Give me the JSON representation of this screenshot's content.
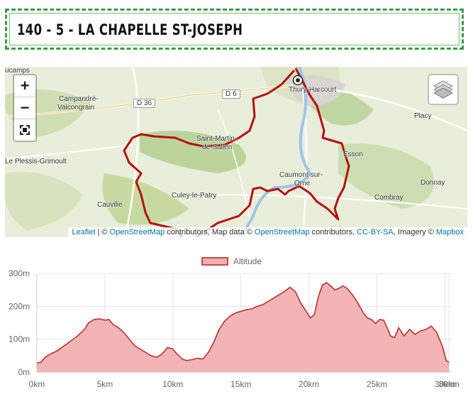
{
  "title": "140 - 5 - LA CHAPELLE ST-JOSEPH",
  "map": {
    "zoom_in_label": "+",
    "zoom_out_label": "−",
    "fullscreen_label": "⛶",
    "attribution": {
      "leaflet": "Leaflet",
      "sep1": " | © ",
      "osm1": "OpenStreetMap",
      "mid1": " contributors, Map data © ",
      "osm2": "OpenStreetMap",
      "mid2": " contributors, ",
      "license": "CC-BY-SA",
      "mid3": ", Imagery © ",
      "mapbox": "Mapbox"
    },
    "places": {
      "ucamps": "ucamps",
      "campandre1": "Campandré-",
      "campandre2": "Valcongrain",
      "d36": "D 36",
      "d6": "D 6",
      "thury": "Thury-Harcourt",
      "placy": "Placy",
      "saint1": "Saint-Martin-",
      "saint2": "de-Sallen",
      "esson": "Esson",
      "plessis": "Le Plessis-Grimoult",
      "caumont1": "Caumont-sur-",
      "caumont2": "Orne",
      "donnay": "Donnay",
      "culey": "Culey-le-Patry",
      "combray": "Combray",
      "cauville": "Cauville"
    },
    "colors": {
      "route": "#b31010",
      "river": "#9ec5e6"
    }
  },
  "chart_data": {
    "type": "area",
    "title": "",
    "legend": "Altitude",
    "legend_position": "top",
    "xlabel": "",
    "ylabel": "",
    "xlim": [
      0,
      30.5
    ],
    "ylim": [
      0,
      300
    ],
    "x_ticks": [
      "0km",
      "5km",
      "10km",
      "15km",
      "20km",
      "25km",
      "30km",
      "30km"
    ],
    "y_ticks": [
      "0m",
      "100m",
      "200m",
      "300m"
    ],
    "grid": true,
    "colors": {
      "fill": "#f1b0b0",
      "line": "#b83232"
    },
    "series": [
      {
        "name": "Altitude",
        "x": [
          0,
          0.3,
          0.6,
          1.0,
          1.5,
          2.0,
          2.5,
          3.0,
          3.5,
          3.8,
          4.2,
          4.6,
          5.0,
          5.3,
          5.6,
          6.0,
          6.4,
          6.8,
          7.2,
          7.6,
          8.0,
          8.4,
          8.8,
          9.2,
          9.6,
          10.0,
          10.3,
          10.7,
          11.0,
          11.4,
          11.8,
          12.2,
          12.6,
          13.0,
          13.4,
          13.8,
          14.2,
          14.6,
          15.0,
          15.4,
          15.8,
          16.2,
          16.6,
          17.0,
          17.4,
          17.8,
          18.2,
          18.6,
          19.0,
          19.4,
          19.8,
          20.1,
          20.4,
          20.7,
          21.0,
          21.3,
          21.6,
          21.9,
          22.2,
          22.5,
          22.8,
          23.2,
          23.6,
          24.0,
          24.3,
          24.6,
          24.9,
          25.2,
          25.5,
          25.8,
          26.0,
          26.3,
          26.6,
          27.0,
          27.4,
          27.8,
          28.2,
          28.6,
          29.0,
          29.4,
          29.8,
          30.1,
          30.3
        ],
        "values": [
          28,
          30,
          45,
          55,
          65,
          80,
          95,
          110,
          130,
          150,
          160,
          162,
          158,
          160,
          145,
          135,
          120,
          100,
          80,
          70,
          60,
          50,
          45,
          55,
          75,
          70,
          55,
          40,
          35,
          38,
          42,
          40,
          60,
          90,
          130,
          155,
          170,
          180,
          185,
          190,
          192,
          200,
          205,
          215,
          225,
          235,
          245,
          258,
          245,
          210,
          185,
          165,
          175,
          230,
          265,
          272,
          262,
          250,
          255,
          262,
          255,
          235,
          210,
          180,
          165,
          160,
          148,
          160,
          158,
          130,
          110,
          105,
          135,
          110,
          130,
          115,
          125,
          130,
          140,
          120,
          80,
          35,
          30
        ]
      }
    ]
  }
}
